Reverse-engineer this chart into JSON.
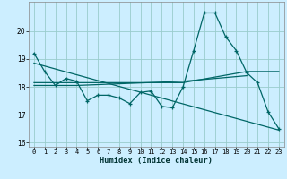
{
  "xlabel": "Humidex (Indice chaleur)",
  "bg_color": "#cceeff",
  "line_color": "#006666",
  "grid_color": "#99cccc",
  "xlim": [
    -0.5,
    23.5
  ],
  "ylim": [
    15.85,
    21.05
  ],
  "yticks": [
    16,
    17,
    18,
    19,
    20
  ],
  "xticks": [
    0,
    1,
    2,
    3,
    4,
    5,
    6,
    7,
    8,
    9,
    10,
    11,
    12,
    13,
    14,
    15,
    16,
    17,
    18,
    19,
    20,
    21,
    22,
    23
  ],
  "xlabels": [
    "0",
    "1",
    "2",
    "3",
    "4",
    "5",
    "6",
    "7",
    "8",
    "9",
    "10",
    "11",
    "12",
    "13",
    "14",
    "15",
    "16",
    "17",
    "18",
    "19",
    "20",
    "21",
    "22",
    "23"
  ],
  "series1_x": [
    0,
    1,
    2,
    3,
    4,
    5,
    6,
    7,
    8,
    9,
    10,
    11,
    12,
    13,
    14,
    15,
    16,
    17,
    18,
    19,
    20,
    21,
    22,
    23
  ],
  "series1_y": [
    19.2,
    18.55,
    18.05,
    18.3,
    18.2,
    17.5,
    17.7,
    17.7,
    17.6,
    17.4,
    17.8,
    17.85,
    17.3,
    17.25,
    18.0,
    19.3,
    20.65,
    20.65,
    19.8,
    19.3,
    18.5,
    18.15,
    17.1,
    16.5
  ],
  "series2_x": [
    0,
    23
  ],
  "series2_y": [
    18.85,
    16.45
  ],
  "series3_x": [
    0,
    4,
    14,
    20
  ],
  "series3_y": [
    18.05,
    18.05,
    18.2,
    18.4
  ],
  "series4_x": [
    0,
    14,
    20,
    23
  ],
  "series4_y": [
    18.15,
    18.15,
    18.55,
    18.55
  ]
}
